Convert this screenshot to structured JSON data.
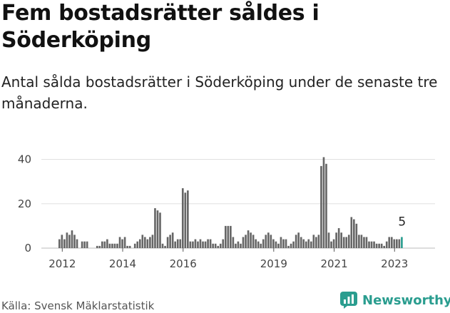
{
  "header": {
    "title": "Fem bostadsrätter såldes i Söderköping",
    "subtitle": "Antal sålda bostadsrätter i Söderköping under de senaste tre månaderna."
  },
  "footer": {
    "source": "Källa: Svensk Mäklarstatistik"
  },
  "brand": {
    "name": "Newsworthy",
    "logo_icon": "newsworthy-logo-icon",
    "color": "#2a9d8f"
  },
  "chart_data": {
    "type": "bar",
    "title": "",
    "xlabel": "",
    "ylabel": "",
    "ylim": [
      0,
      45
    ],
    "yticks": [
      0,
      20,
      40
    ],
    "xticks": [
      "2012",
      "2014",
      "2016",
      "2019",
      "2021",
      "2023"
    ],
    "grid": true,
    "bar_color": "#666666",
    "highlight_color": "#2a9d8f",
    "highlight_label": "5",
    "start_month": "2011-12",
    "values": [
      4,
      6,
      4,
      7,
      6,
      8,
      6,
      4,
      0,
      3,
      3,
      3,
      0,
      0,
      0,
      1,
      1,
      3,
      3,
      4,
      2,
      2,
      2,
      2,
      5,
      4,
      5,
      1,
      1,
      0,
      2,
      3,
      4,
      6,
      5,
      4,
      5,
      6,
      18,
      17,
      16,
      2,
      1,
      5,
      6,
      7,
      3,
      4,
      4,
      27,
      25,
      26,
      3,
      3,
      4,
      3,
      4,
      3,
      3,
      4,
      4,
      2,
      2,
      1,
      2,
      4,
      10,
      10,
      10,
      5,
      2,
      3,
      2,
      5,
      6,
      8,
      7,
      6,
      4,
      3,
      2,
      4,
      6,
      7,
      6,
      4,
      3,
      2,
      5,
      4,
      4,
      1,
      2,
      3,
      6,
      7,
      5,
      4,
      3,
      4,
      3,
      6,
      5,
      6,
      37,
      41,
      38,
      7,
      3,
      4,
      7,
      9,
      7,
      5,
      5,
      6,
      14,
      13,
      11,
      6,
      6,
      5,
      5,
      3,
      3,
      3,
      2,
      2,
      2,
      1,
      3,
      5,
      5,
      4,
      4,
      4,
      5
    ]
  }
}
